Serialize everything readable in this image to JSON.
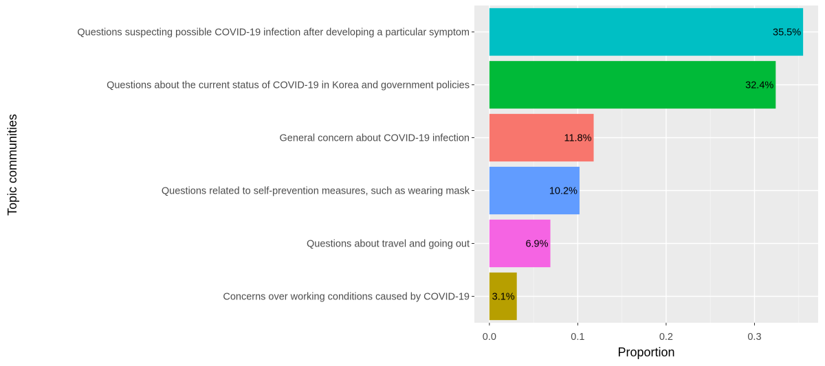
{
  "chart_data": {
    "type": "bar",
    "orientation": "horizontal",
    "categories": [
      "Questions suspecting possible COVID-19 infection after developing a particular symptom",
      "Questions about the current status of COVID-19 in Korea and government policies",
      "General concern about COVID-19 infection",
      "Questions related to self-prevention measures, such as wearing mask",
      "Questions about travel and going out",
      "Concerns over working conditions caused by COVID-19"
    ],
    "values": [
      0.355,
      0.324,
      0.118,
      0.102,
      0.069,
      0.031
    ],
    "data_labels": [
      "35.5%",
      "32.4%",
      "11.8%",
      "10.2%",
      "6.9%",
      "3.1%"
    ],
    "colors": [
      "#00BFC4",
      "#00BA38",
      "#F8766D",
      "#619CFF",
      "#F564E3",
      "#B79F00"
    ],
    "xlabel": "Proportion",
    "ylabel": "Topic communities",
    "xlim": [
      -0.017,
      0.372
    ],
    "x_ticks": [
      0.0,
      0.1,
      0.2,
      0.3
    ],
    "x_tick_labels": [
      "0.0",
      "0.1",
      "0.2",
      "0.3"
    ],
    "grid": true,
    "legend": "none"
  }
}
